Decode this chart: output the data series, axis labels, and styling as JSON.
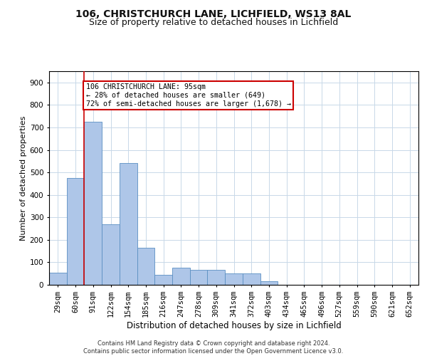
{
  "title_line1": "106, CHRISTCHURCH LANE, LICHFIELD, WS13 8AL",
  "title_line2": "Size of property relative to detached houses in Lichfield",
  "xlabel": "Distribution of detached houses by size in Lichfield",
  "ylabel": "Number of detached properties",
  "bins": [
    "29sqm",
    "60sqm",
    "91sqm",
    "122sqm",
    "154sqm",
    "185sqm",
    "216sqm",
    "247sqm",
    "278sqm",
    "309sqm",
    "341sqm",
    "372sqm",
    "403sqm",
    "434sqm",
    "465sqm",
    "496sqm",
    "527sqm",
    "559sqm",
    "590sqm",
    "621sqm",
    "652sqm"
  ],
  "bar_values": [
    55,
    475,
    725,
    270,
    540,
    165,
    45,
    75,
    65,
    65,
    50,
    50,
    15,
    0,
    0,
    0,
    0,
    0,
    0,
    0,
    0
  ],
  "bar_color": "#aec6e8",
  "bar_edge_color": "#5a8fc2",
  "property_line_color": "#cc0000",
  "annotation_text": "106 CHRISTCHURCH LANE: 95sqm\n← 28% of detached houses are smaller (649)\n72% of semi-detached houses are larger (1,678) →",
  "annotation_box_color": "#ffffff",
  "annotation_box_edgecolor": "#cc0000",
  "ylim": [
    0,
    950
  ],
  "yticks": [
    0,
    100,
    200,
    300,
    400,
    500,
    600,
    700,
    800,
    900
  ],
  "background_color": "#ffffff",
  "grid_color": "#c8d8e8",
  "footer_text": "Contains HM Land Registry data © Crown copyright and database right 2024.\nContains public sector information licensed under the Open Government Licence v3.0.",
  "title_fontsize": 10,
  "subtitle_fontsize": 9,
  "axis_label_fontsize": 8,
  "tick_fontsize": 7.5,
  "footer_fontsize": 6
}
